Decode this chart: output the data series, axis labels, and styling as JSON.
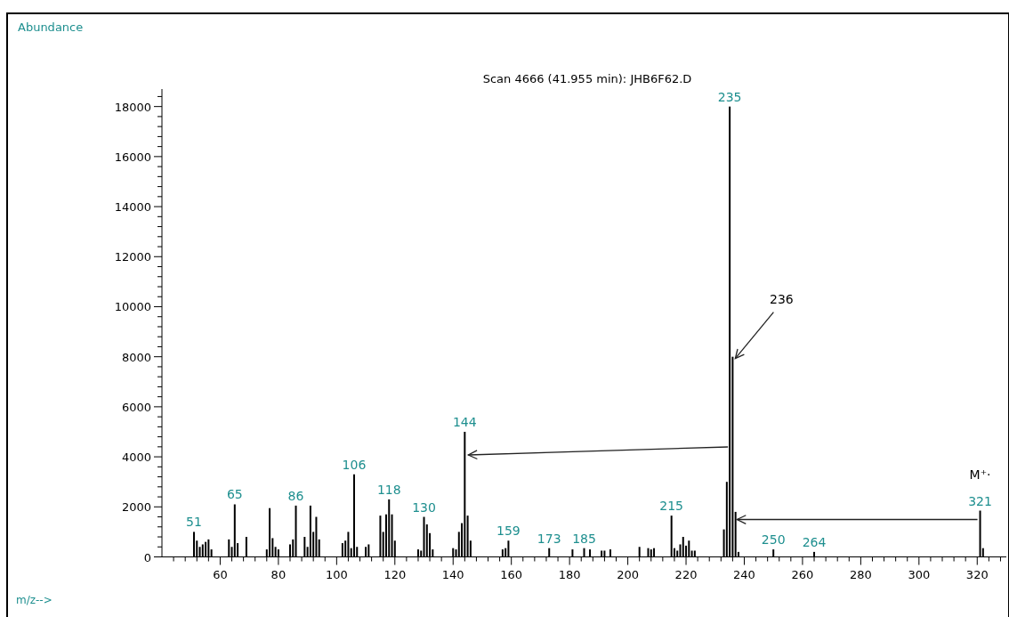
{
  "chart_data": {
    "type": "bar",
    "title": "Scan 4666 (41.955 min): JHB6F62.D",
    "x": [
      51,
      52,
      53,
      54,
      55,
      56,
      57,
      63,
      64,
      65,
      66,
      69,
      76,
      77,
      78,
      79,
      80,
      84,
      85,
      86,
      89,
      90,
      91,
      92,
      93,
      94,
      102,
      103,
      104,
      105,
      106,
      107,
      110,
      111,
      115,
      116,
      117,
      118,
      119,
      120,
      128,
      129,
      130,
      131,
      132,
      133,
      140,
      141,
      142,
      143,
      144,
      145,
      146,
      157,
      158,
      159,
      173,
      181,
      185,
      187,
      191,
      192,
      194,
      204,
      207,
      208,
      209,
      215,
      216,
      217,
      218,
      219,
      220,
      221,
      222,
      223,
      233,
      234,
      235,
      236,
      237,
      238,
      250,
      264,
      321,
      322
    ],
    "series": [
      {
        "color": "#000000",
        "values": [
          1000,
          650,
          400,
          500,
          600,
          700,
          300,
          700,
          400,
          2100,
          550,
          800,
          300,
          1950,
          750,
          400,
          300,
          500,
          700,
          2050,
          800,
          400,
          2050,
          1000,
          1600,
          700,
          550,
          650,
          1000,
          350,
          3300,
          400,
          400,
          500,
          1650,
          1000,
          1700,
          2300,
          1700,
          650,
          300,
          250,
          1600,
          1300,
          950,
          300,
          350,
          300,
          1000,
          1350,
          5000,
          1650,
          650,
          300,
          350,
          650,
          350,
          300,
          350,
          300,
          250,
          250,
          300,
          400,
          350,
          300,
          350,
          1650,
          350,
          250,
          500,
          800,
          450,
          650,
          250,
          250,
          1100,
          3000,
          18000,
          8000,
          1800,
          200,
          300,
          200,
          1850,
          350
        ]
      }
    ],
    "xlim": [
      40,
      330
    ],
    "ylim": [
      0,
      18700
    ],
    "xticks": [
      {
        "value": 44,
        "label": null
      },
      {
        "value": 48,
        "label": null
      },
      {
        "value": 52,
        "label": null
      },
      {
        "value": 56,
        "label": null
      },
      60,
      {
        "value": 64,
        "label": null
      },
      {
        "value": 68,
        "label": null
      },
      {
        "value": 72,
        "label": null
      },
      {
        "value": 76,
        "label": null
      },
      80,
      {
        "value": 84,
        "label": null
      },
      {
        "value": 88,
        "label": null
      },
      {
        "value": 92,
        "label": null
      },
      {
        "value": 96,
        "label": null
      },
      100,
      {
        "value": 104,
        "label": null
      },
      {
        "value": 108,
        "label": null
      },
      {
        "value": 112,
        "label": null
      },
      {
        "value": 116,
        "label": null
      },
      120,
      {
        "value": 124,
        "label": null
      },
      {
        "value": 128,
        "label": null
      },
      {
        "value": 132,
        "label": null
      },
      {
        "value": 136,
        "label": null
      },
      140,
      {
        "value": 144,
        "label": null
      },
      {
        "value": 148,
        "label": null
      },
      {
        "value": 152,
        "label": null
      },
      {
        "value": 156,
        "label": null
      },
      160,
      {
        "value": 164,
        "label": null
      },
      {
        "value": 168,
        "label": null
      },
      {
        "value": 172,
        "label": null
      },
      {
        "value": 176,
        "label": null
      },
      180,
      {
        "value": 184,
        "label": null
      },
      {
        "value": 188,
        "label": null
      },
      {
        "value": 192,
        "label": null
      },
      {
        "value": 196,
        "label": null
      },
      200,
      {
        "value": 204,
        "label": null
      },
      {
        "value": 208,
        "label": null
      },
      {
        "value": 212,
        "label": null
      },
      {
        "value": 216,
        "label": null
      },
      220,
      {
        "value": 224,
        "label": null
      },
      {
        "value": 228,
        "label": null
      },
      {
        "value": 232,
        "label": null
      },
      {
        "value": 236,
        "label": null
      },
      240,
      {
        "value": 244,
        "label": null
      },
      {
        "value": 248,
        "label": null
      },
      {
        "value": 252,
        "label": null
      },
      {
        "value": 256,
        "label": null
      },
      260,
      {
        "value": 264,
        "label": null
      },
      {
        "value": 268,
        "label": null
      },
      {
        "value": 272,
        "label": null
      },
      {
        "value": 276,
        "label": null
      },
      280,
      {
        "value": 284,
        "label": null
      },
      {
        "value": 288,
        "label": null
      },
      {
        "value": 292,
        "label": null
      },
      {
        "value": 296,
        "label": null
      },
      300,
      {
        "value": 304,
        "label": null
      },
      {
        "value": 308,
        "label": null
      },
      {
        "value": 312,
        "label": null
      },
      {
        "value": 316,
        "label": null
      },
      320,
      {
        "value": 324,
        "label": null
      },
      {
        "value": 328,
        "label": null
      }
    ],
    "yticks": [
      0,
      {
        "value": 400,
        "label": null
      },
      {
        "value": 800,
        "label": null
      },
      {
        "value": 1200,
        "label": null
      },
      {
        "value": 1600,
        "label": null
      },
      2000,
      {
        "value": 2400,
        "label": null
      },
      {
        "value": 2800,
        "label": null
      },
      {
        "value": 3200,
        "label": null
      },
      {
        "value": 3600,
        "label": null
      },
      4000,
      {
        "value": 4400,
        "label": null
      },
      {
        "value": 4800,
        "label": null
      },
      {
        "value": 5200,
        "label": null
      },
      {
        "value": 5600,
        "label": null
      },
      6000,
      {
        "value": 6400,
        "label": null
      },
      {
        "value": 6800,
        "label": null
      },
      {
        "value": 7200,
        "label": null
      },
      {
        "value": 7600,
        "label": null
      },
      8000,
      {
        "value": 8400,
        "label": null
      },
      {
        "value": 8800,
        "label": null
      },
      {
        "value": 9200,
        "label": null
      },
      {
        "value": 9600,
        "label": null
      },
      10000,
      {
        "value": 10400,
        "label": null
      },
      {
        "value": 10800,
        "label": null
      },
      {
        "value": 11200,
        "label": null
      },
      {
        "value": 11600,
        "label": null
      },
      12000,
      {
        "value": 12400,
        "label": null
      },
      {
        "value": 12800,
        "label": null
      },
      {
        "value": 13200,
        "label": null
      },
      {
        "value": 13600,
        "label": null
      },
      14000,
      {
        "value": 14400,
        "label": null
      },
      {
        "value": 14800,
        "label": null
      },
      {
        "value": 15200,
        "label": null
      },
      {
        "value": 15600,
        "label": null
      },
      16000,
      {
        "value": 16400,
        "label": null
      },
      {
        "value": 16800,
        "label": null
      },
      {
        "value": 17200,
        "label": null
      },
      {
        "value": 17600,
        "label": null
      },
      18000,
      {
        "value": 18400,
        "label": null
      }
    ],
    "annotations": [
      {
        "text": "51",
        "x": 51,
        "y": 1000
      },
      {
        "text": "65",
        "x": 65,
        "y": 2100
      },
      {
        "text": "86",
        "x": 86,
        "y": 2050
      },
      {
        "text": "106",
        "x": 106,
        "y": 3300
      },
      {
        "text": "118",
        "x": 118,
        "y": 2300
      },
      {
        "text": "130",
        "x": 130,
        "y": 1600
      },
      {
        "text": "144",
        "x": 144,
        "y": 5000
      },
      {
        "text": "159",
        "x": 159,
        "y": 650
      },
      {
        "text": "173",
        "x": 173,
        "y": 350
      },
      {
        "text": "185",
        "x": 185,
        "y": 350
      },
      {
        "text": "215",
        "x": 215,
        "y": 1650
      },
      {
        "text": "235",
        "x": 235,
        "y": 18000
      },
      {
        "text": "250",
        "x": 250,
        "y": 300
      },
      {
        "text": "264",
        "x": 264,
        "y": 200
      },
      {
        "text": "321",
        "x": 321,
        "y": 1850
      },
      {
        "text": "M⁺·",
        "x": 321,
        "y": 1850
      },
      {
        "text": "236",
        "x": 236,
        "y": 8000
      },
      "Abundance",
      "m/z-->"
    ]
  }
}
